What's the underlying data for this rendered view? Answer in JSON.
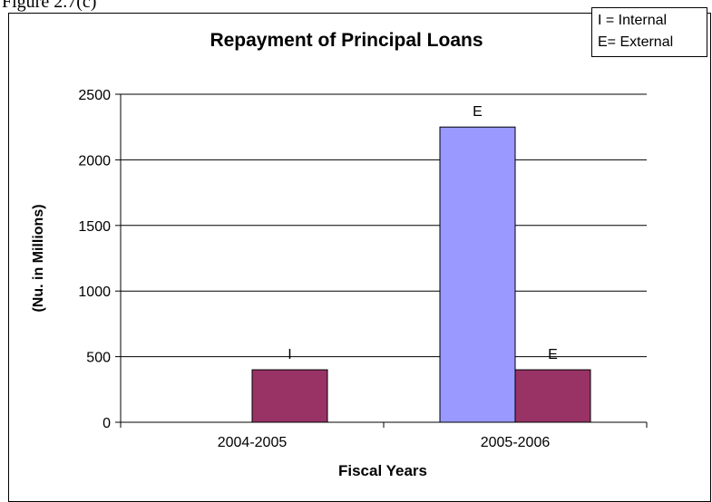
{
  "caption_fragment": "Figure 2.7(c)",
  "legend_note": [
    "I = Internal",
    "E= External"
  ],
  "chart_data": {
    "type": "bar",
    "title": "Repayment of Principal Loans",
    "xlabel": "Fiscal Years",
    "ylabel": "(Nu. in Millions)",
    "ylim": [
      0,
      2500
    ],
    "yticks": [
      0,
      500,
      1000,
      1500,
      2000,
      2500
    ],
    "grid": true,
    "categories": [
      "2004-2005",
      "2005-2006"
    ],
    "series": [
      {
        "name": "I",
        "color": "#9999ff",
        "values": [
          0,
          2250
        ]
      },
      {
        "name": "E",
        "color": "#993366",
        "values": [
          400,
          400
        ]
      }
    ],
    "bar_labels": [
      [
        "",
        "I"
      ],
      [
        "E",
        "E"
      ]
    ]
  }
}
